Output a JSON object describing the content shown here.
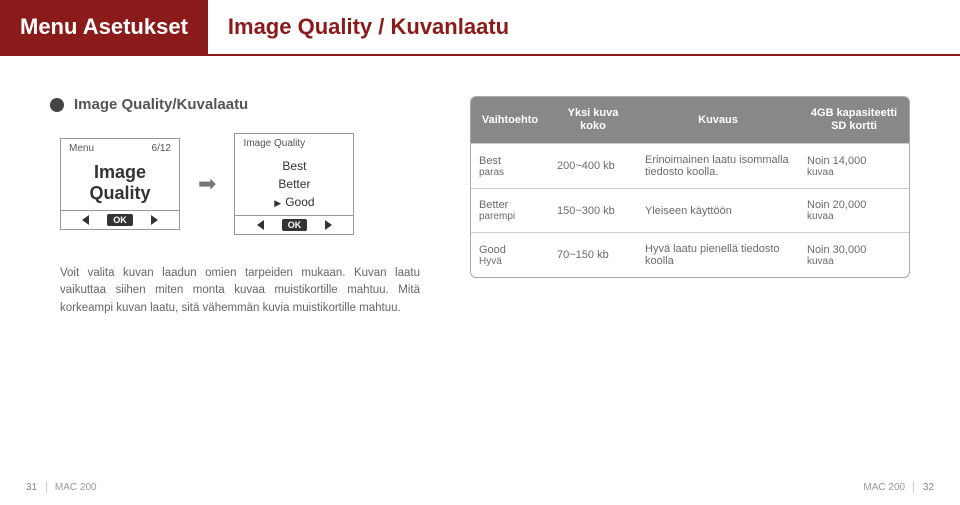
{
  "header": {
    "tab": "Menu Asetukset",
    "title": "Image Quality / Kuvanlaatu"
  },
  "section": {
    "title": "Image Quality/Kuvalaatu"
  },
  "menu1": {
    "top_left": "Menu",
    "top_right": "6/12",
    "line1": "Image",
    "line2": "Quality",
    "ok": "OK"
  },
  "menu2": {
    "top": "Image Quality",
    "opt1": "Best",
    "opt2": "Better",
    "opt3": "Good",
    "ok": "OK"
  },
  "desc": "Voit valita kuvan laadun omien tarpeiden mukaan. Kuvan laatu vaikuttaa siihen miten monta kuvaa muistikortille mahtuu. Mitä korkeampi kuvan laatu, sitä vähemmän kuvia muistikortille mahtuu.",
  "table": {
    "head": {
      "c1": "Vaihtoehto",
      "c2a": "Yksi kuva",
      "c2b": "koko",
      "c3": "Kuvaus",
      "c4a": "4GB kapasiteetti",
      "c4b": "SD kortti"
    },
    "rows": [
      {
        "c1a": "Best",
        "c1b": "paras",
        "c2": "200~400 kb",
        "c3": "Erinoimainen laatu isommalla tiedosto koolla.",
        "c4a": "Noin 14,000",
        "c4b": "kuvaa"
      },
      {
        "c1a": "Better",
        "c1b": "parempi",
        "c2": "150~300 kb",
        "c3": "Yleiseen käyttöön",
        "c4a": "Noin 20,000",
        "c4b": "kuvaa"
      },
      {
        "c1a": "Good",
        "c1b": "Hyvä",
        "c2": "70~150 kb",
        "c3": "Hyvä laatu pienellä tiedosto koolla",
        "c4a": "Noin 30,000",
        "c4b": "kuvaa"
      }
    ]
  },
  "footer": {
    "left_page": "31",
    "model": "MAC 200",
    "right_page": "32"
  }
}
